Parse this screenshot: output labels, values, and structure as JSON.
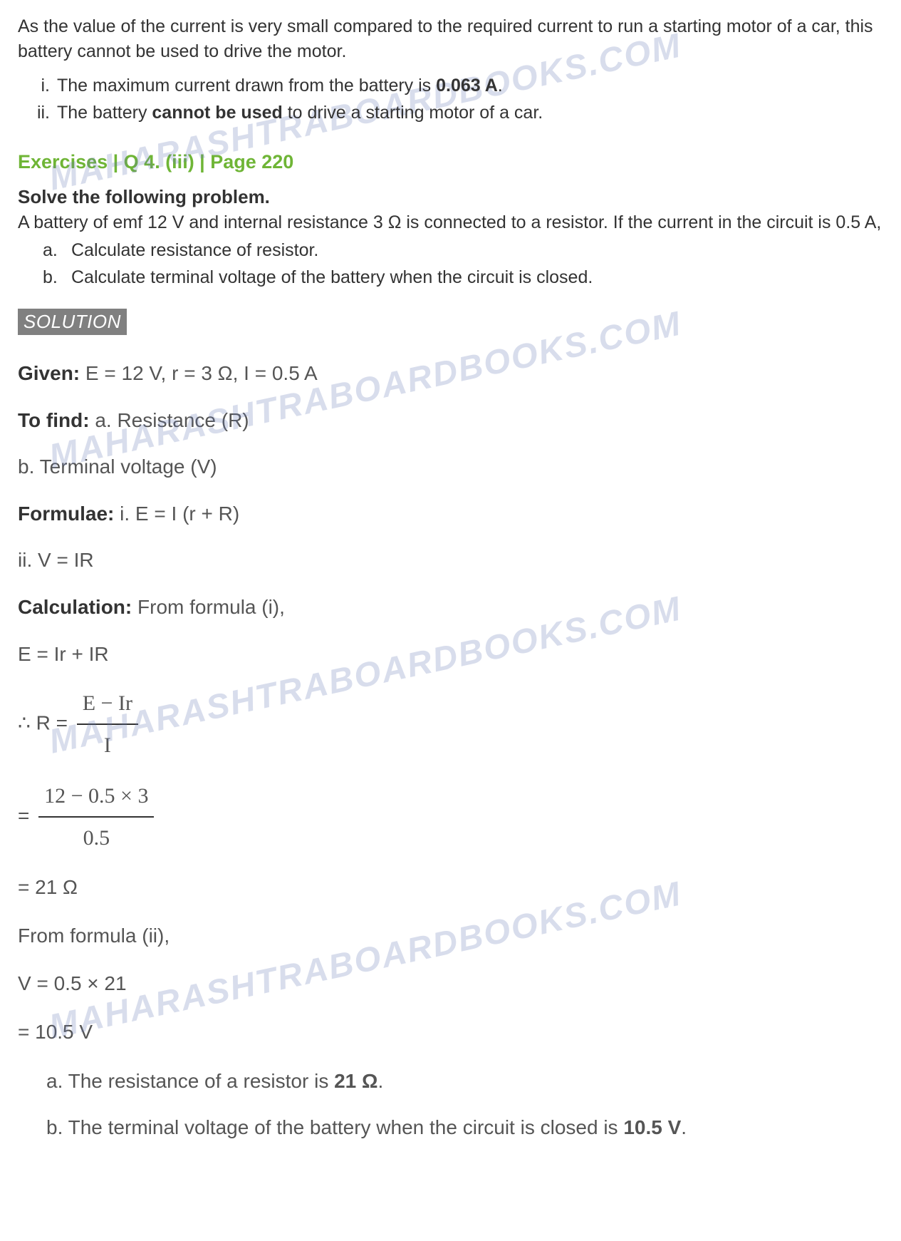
{
  "page": {
    "watermark": "MAHARASHTRABOARDBOOKS.COM",
    "colors": {
      "text": "#333333",
      "solution_text": "#555555",
      "exercise_header": "#6fb536",
      "badge_bg": "#808080",
      "badge_text": "#ffffff",
      "watermark": "rgba(100, 120, 180, 0.25)",
      "background": "#ffffff"
    },
    "typography": {
      "body_fontsize": 25,
      "solution_fontsize": 28,
      "header_fontsize": 27,
      "fraction_fontsize": 30,
      "watermark_fontsize": 48
    }
  },
  "intro": {
    "text": "As the value of the current is very small compared to the required current to run a starting motor of a car, this battery cannot be used to drive the motor.",
    "conclusions": [
      {
        "marker": "i.",
        "text_before": "The maximum current drawn from the battery is ",
        "bold": "0.063 A",
        "text_after": "."
      },
      {
        "marker": "ii.",
        "text_before": "The battery ",
        "bold": "cannot be used",
        "text_after": " to drive a starting motor of a car."
      }
    ]
  },
  "exercise": {
    "header": "Exercises | Q 4. (iii) | Page 220",
    "problem_title": "Solve the following problem.",
    "problem_text": "A battery of emf 12 V and internal resistance 3 Ω is connected to a resistor. If the current in the circuit is 0.5 A,",
    "subparts": [
      {
        "marker": "a.",
        "text": "Calculate resistance of resistor."
      },
      {
        "marker": "b.",
        "text": "Calculate terminal voltage of the battery when the circuit is closed."
      }
    ]
  },
  "solution": {
    "badge": "SOLUTION",
    "given_label": "Given:",
    "given_text": " E = 12 V, r = 3 Ω, I = 0.5 A",
    "tofind_label": "To find:",
    "tofind_a": " a. Resistance (R)",
    "tofind_b": "b. Terminal voltage (V)",
    "formulae_label": "Formulae:",
    "formulae_i": " i. E = I (r + R)",
    "formulae_ii": "ii. V = IR",
    "calc_label": "Calculation:",
    "calc_intro": " From formula (i),",
    "step1": "E = Ir + IR",
    "step2_prefix": "∴ R = ",
    "step2_num": "E − Ir",
    "step2_den": "I",
    "step3_prefix": "= ",
    "step3_num": "12 − 0.5 × 3",
    "step3_den": "0.5",
    "step4": "= 21 Ω",
    "step5": "From formula (ii),",
    "step6": "V = 0.5 × 21",
    "step7": "= 10.5 V",
    "answers": [
      {
        "prefix": "a. The resistance of a resistor is ",
        "bold": "21 Ω",
        "suffix": "."
      },
      {
        "prefix": "b. The terminal voltage of the battery when the circuit is closed is ",
        "bold": "10.5 V",
        "suffix": "."
      }
    ]
  }
}
